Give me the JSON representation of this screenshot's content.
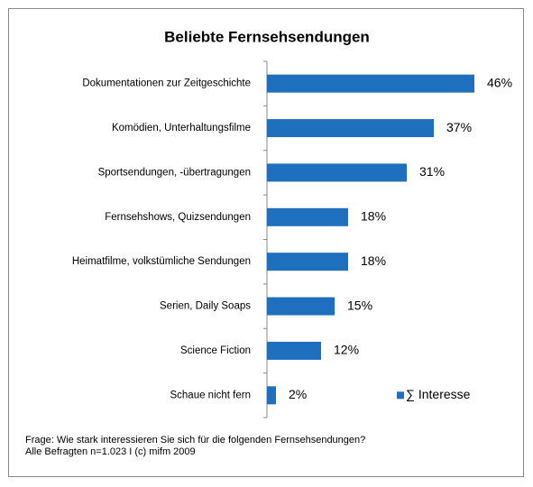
{
  "chart_data": {
    "type": "bar",
    "orientation": "horizontal",
    "title": "Beliebte Fernsehsendungen",
    "categories": [
      "Dokumentationen zur Zeitgeschichte",
      "Komödien, Unterhaltungsfilme",
      "Sportsendungen, -übertragungen",
      "Fernsehshows, Quizsendungen",
      "Heimatfilme, volkstümliche Sendungen",
      "Serien, Daily Soaps",
      "Science Fiction",
      "Schaue nicht fern"
    ],
    "series": [
      {
        "name": "∑ Interesse",
        "color": "#1f6fbf",
        "values": [
          46,
          37,
          31,
          18,
          18,
          15,
          12,
          2
        ],
        "value_labels": [
          "46%",
          "37%",
          "31%",
          "18%",
          "18%",
          "15%",
          "12%",
          "2%"
        ]
      }
    ],
    "xlim": [
      0,
      50
    ],
    "legend": "bottom-right",
    "notes": [
      "Frage: Wie stark interessieren Sie sich für die folgenden Fernsehsendungen?",
      "Alle Befragten n=1.023 I (c) mifm 2009"
    ]
  }
}
